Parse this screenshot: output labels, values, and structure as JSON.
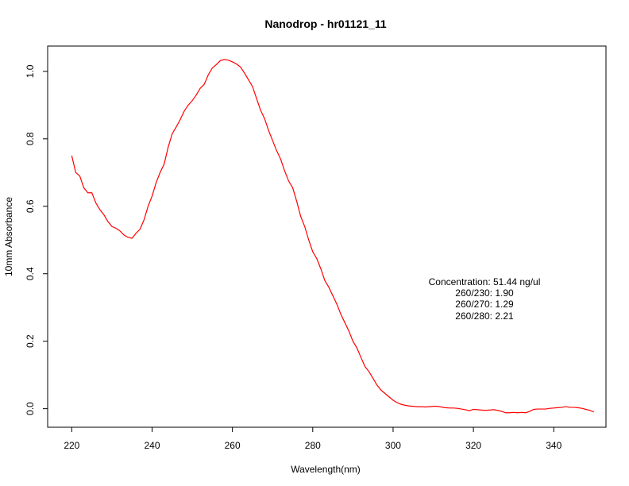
{
  "chart_data": {
    "type": "line",
    "title": "Nanodrop - hr01121_11",
    "xlabel": "Wavelength(nm)",
    "ylabel": "10mm Absorbance",
    "xlim": [
      214,
      353
    ],
    "ylim": [
      -0.055,
      1.075
    ],
    "x_ticks": [
      220,
      240,
      260,
      280,
      300,
      320,
      340
    ],
    "y_ticks": [
      0.0,
      0.2,
      0.4,
      0.6,
      0.8,
      1.0
    ],
    "x_tick_labels": [
      "220",
      "240",
      "260",
      "280",
      "300",
      "320",
      "340"
    ],
    "y_tick_labels": [
      "0.0",
      "0.2",
      "0.4",
      "0.6",
      "0.8",
      "1.0"
    ],
    "grid": false,
    "series": [
      {
        "color": "#ff0000",
        "x": [
          220,
          221,
          222,
          223,
          224,
          225,
          226,
          227,
          228,
          229,
          230,
          231,
          232,
          233,
          234,
          235,
          236,
          237,
          238,
          239,
          240,
          241,
          242,
          243,
          244,
          245,
          246,
          247,
          248,
          249,
          250,
          251,
          252,
          253,
          254,
          255,
          256,
          257,
          258,
          259,
          260,
          261,
          262,
          263,
          264,
          265,
          266,
          267,
          268,
          269,
          270,
          271,
          272,
          273,
          274,
          275,
          276,
          277,
          278,
          279,
          280,
          281,
          282,
          283,
          284,
          285,
          286,
          287,
          288,
          289,
          290,
          291,
          292,
          293,
          294,
          295,
          296,
          297,
          298,
          299,
          300,
          301,
          302,
          303,
          304,
          305,
          306,
          307,
          308,
          309,
          310,
          311,
          312,
          313,
          314,
          315,
          316,
          317,
          318,
          319,
          320,
          321,
          322,
          323,
          324,
          325,
          326,
          327,
          328,
          329,
          330,
          331,
          332,
          333,
          334,
          335,
          336,
          337,
          338,
          339,
          340,
          341,
          342,
          343,
          344,
          345,
          346,
          347,
          348,
          349,
          350
        ],
        "y": [
          0.75,
          0.7,
          0.69,
          0.655,
          0.64,
          0.64,
          0.61,
          0.59,
          0.575,
          0.555,
          0.54,
          0.535,
          0.527,
          0.515,
          0.508,
          0.505,
          0.52,
          0.532,
          0.56,
          0.6,
          0.63,
          0.67,
          0.7,
          0.725,
          0.775,
          0.815,
          0.835,
          0.857,
          0.882,
          0.9,
          0.913,
          0.93,
          0.95,
          0.962,
          0.99,
          1.01,
          1.02,
          1.032,
          1.035,
          1.033,
          1.028,
          1.022,
          1.013,
          0.995,
          0.975,
          0.955,
          0.92,
          0.885,
          0.86,
          0.825,
          0.795,
          0.765,
          0.74,
          0.705,
          0.675,
          0.655,
          0.615,
          0.57,
          0.54,
          0.5,
          0.465,
          0.445,
          0.415,
          0.38,
          0.36,
          0.335,
          0.31,
          0.28,
          0.255,
          0.23,
          0.2,
          0.18,
          0.152,
          0.125,
          0.11,
          0.09,
          0.07,
          0.055,
          0.045,
          0.035,
          0.025,
          0.018,
          0.013,
          0.01,
          0.008,
          0.007,
          0.006,
          0.006,
          0.005,
          0.006,
          0.007,
          0.007,
          0.005,
          0.003,
          0.002,
          0.002,
          0.001,
          -0.001,
          -0.003,
          -0.006,
          -0.002,
          -0.003,
          -0.004,
          -0.005,
          -0.004,
          -0.003,
          -0.005,
          -0.008,
          -0.012,
          -0.012,
          -0.011,
          -0.012,
          -0.011,
          -0.012,
          -0.008,
          -0.002,
          -0.001,
          -0.001,
          -0.001,
          0.001,
          0.002,
          0.003,
          0.004,
          0.006,
          0.004,
          0.004,
          0.003,
          0.001,
          -0.002,
          -0.005,
          -0.01
        ]
      }
    ],
    "annotation": {
      "concentration": "Concentration: 51.44 ng/ul",
      "r260_230": "260/230: 1.90",
      "r260_270": "260/270: 1.29",
      "r260_280": "260/280: 2.21"
    }
  }
}
